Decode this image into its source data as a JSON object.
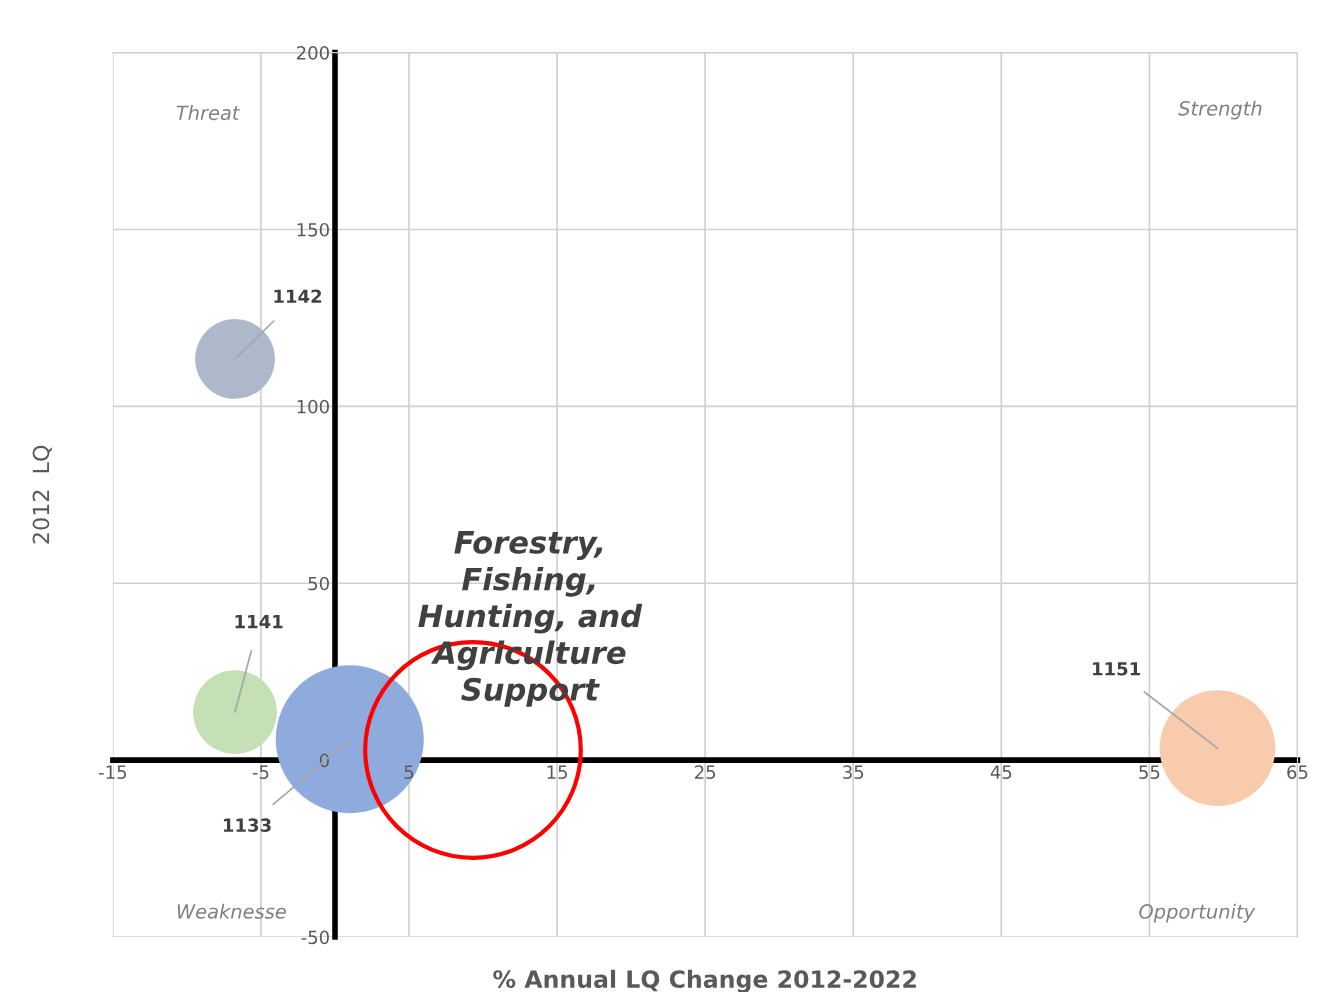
{
  "chart_data": {
    "type": "bubble",
    "title": "Forestry,\nFishing,\nHunting, and\nAgriculture\nSupport",
    "xlabel": "% Annual LQ Change 2012-2022",
    "ylabel": "2012  LQ",
    "series": [
      {
        "name": "1142",
        "color": "#adb9ca",
        "x": [
          -6.75
        ],
        "values": [
          113.4
        ],
        "sizes": [
          0.29
        ]
      },
      {
        "name": "1141",
        "color": "#c5e0b4",
        "x": [
          -6.75
        ],
        "values": [
          13.6
        ],
        "sizes": [
          0.32
        ]
      },
      {
        "name": "1133",
        "color": "#8faadc",
        "x": [
          1.0
        ],
        "values": [
          5.9
        ],
        "sizes": [
          1
        ]
      },
      {
        "name": "1151",
        "color": "#f8cbad",
        "x": [
          59.6
        ],
        "values": [
          3.4
        ],
        "sizes": [
          0.61
        ]
      }
    ],
    "annotations": [
      "Threat",
      "Strength",
      "Weaknesse",
      "Opportunity"
    ],
    "xlim": [
      -15,
      65
    ],
    "xticks": [
      -15,
      -5,
      5,
      15,
      25,
      35,
      45,
      55,
      65
    ],
    "ylim": [
      -50,
      200
    ],
    "yticks": [
      -50,
      0,
      50,
      100,
      150,
      200
    ],
    "grid": true
  }
}
